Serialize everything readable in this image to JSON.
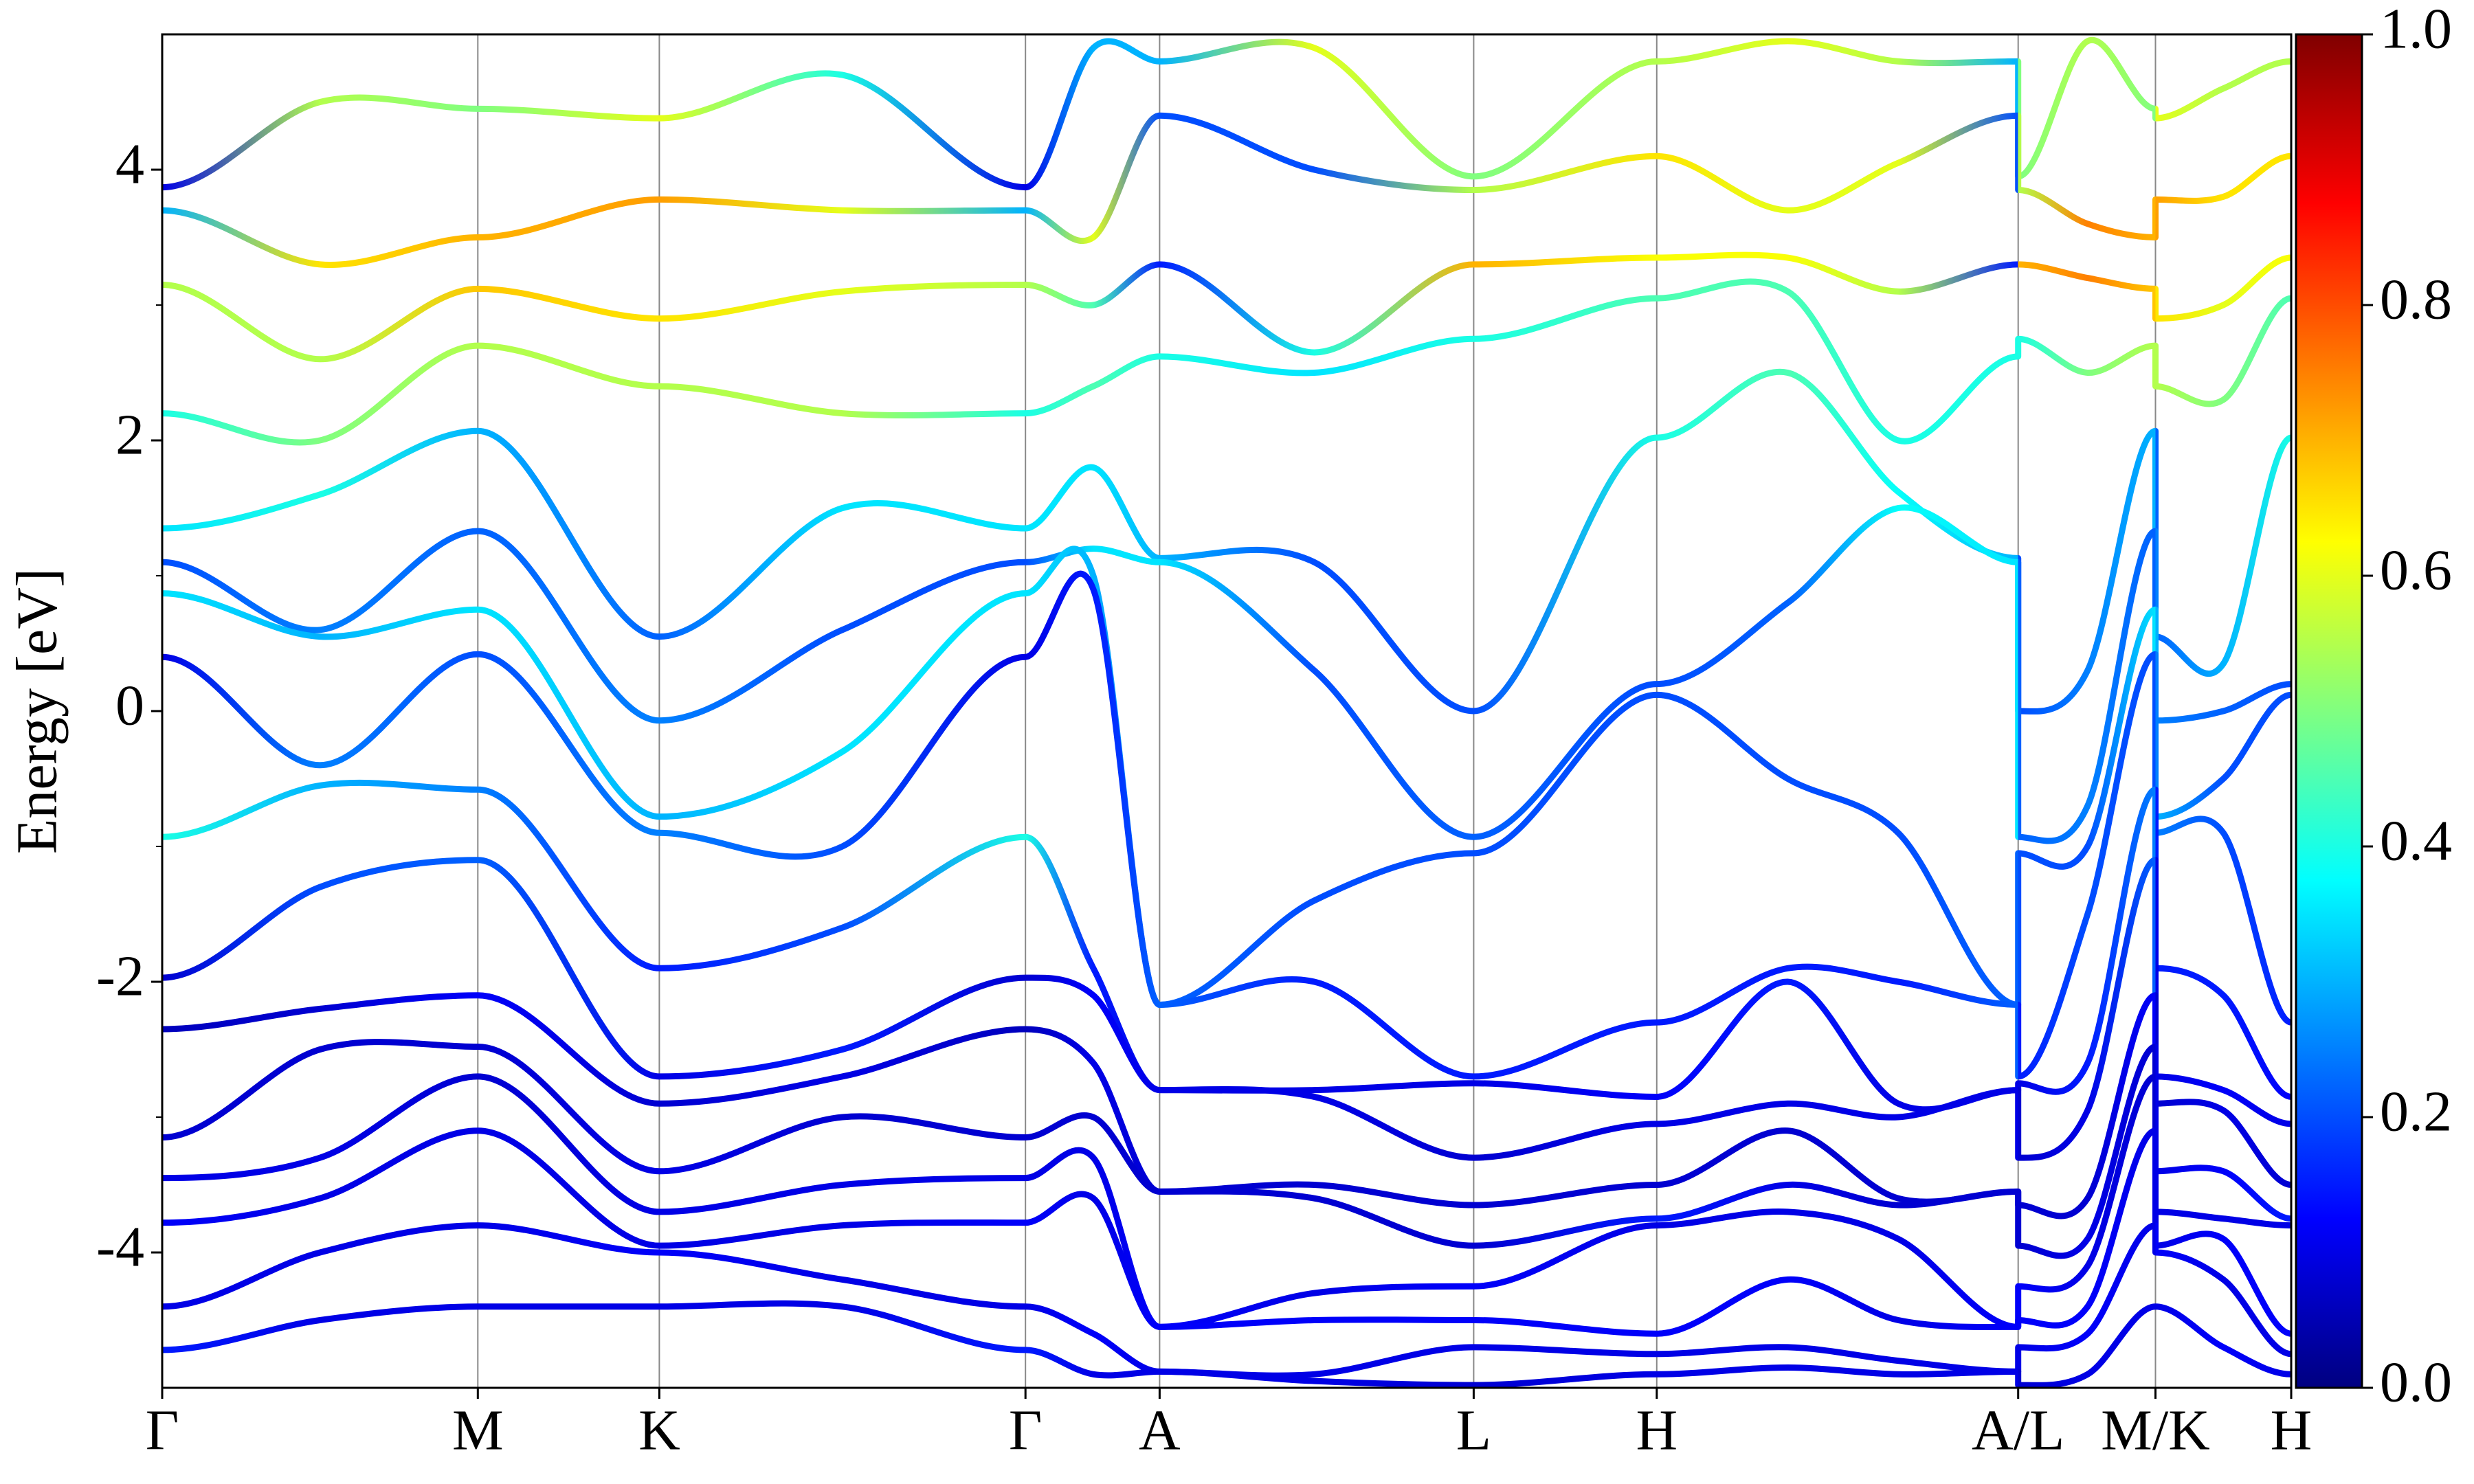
{
  "chart_data": {
    "type": "bands",
    "ylabel": "Energy [eV]",
    "colormap": "jet",
    "x": [
      0,
      1.0,
      2.0,
      3.15,
      4.31,
      5.47,
      5.9,
      6.32,
      7.3,
      8.31,
      9.47,
      10.3,
      11.0,
      11.76,
      11.76,
      12.2,
      12.63,
      12.63,
      13.06,
      13.49
    ],
    "xlim": [
      0,
      13.49
    ],
    "xticks": [
      {
        "value": 0,
        "label": "Γ"
      },
      {
        "value": 2.0,
        "label": "M"
      },
      {
        "value": 3.15,
        "label": "K"
      },
      {
        "value": 5.47,
        "label": "Γ"
      },
      {
        "value": 6.32,
        "label": "A"
      },
      {
        "value": 8.31,
        "label": "L"
      },
      {
        "value": 9.47,
        "label": "H"
      },
      {
        "value": 11.76,
        "label": "A/L"
      },
      {
        "value": 12.63,
        "label": "M/K"
      },
      {
        "value": 13.49,
        "label": "H"
      }
    ],
    "ylim": [
      -5,
      5
    ],
    "yticks": [
      -4,
      -2,
      0,
      2,
      4
    ],
    "clim": [
      0,
      1
    ],
    "cticks": [
      {
        "value": 0,
        "label": "0.0"
      },
      0.2,
      0.4,
      0.6,
      0.8,
      {
        "value": 1,
        "label": "1.0"
      }
    ],
    "series": [
      {
        "values": [
          3.87,
          4.5,
          4.45,
          4.38,
          4.7,
          3.87,
          4.9,
          4.8,
          4.9,
          3.95,
          4.8,
          4.95,
          4.8,
          4.8,
          3.95,
          4.95,
          4.45,
          4.38,
          4.6,
          4.8
        ],
        "weights": [
          0.1,
          0.55,
          0.5,
          0.6,
          0.4,
          0.1,
          0.3,
          0.3,
          0.6,
          0.5,
          0.55,
          0.6,
          0.55,
          0.3,
          0.5,
          0.55,
          0.5,
          0.6,
          0.55,
          0.55
        ]
      },
      {
        "values": [
          3.7,
          3.3,
          3.5,
          3.78,
          3.7,
          3.7,
          3.5,
          4.4,
          4.0,
          3.85,
          4.1,
          3.7,
          4.05,
          4.4,
          3.85,
          3.6,
          3.5,
          3.78,
          3.8,
          4.1
        ],
        "weights": [
          0.3,
          0.65,
          0.7,
          0.72,
          0.6,
          0.3,
          0.6,
          0.2,
          0.2,
          0.55,
          0.65,
          0.6,
          0.6,
          0.2,
          0.55,
          0.75,
          0.7,
          0.72,
          0.65,
          0.65
        ]
      },
      {
        "values": [
          3.15,
          2.6,
          3.12,
          2.9,
          3.1,
          3.15,
          3.0,
          3.3,
          2.65,
          3.3,
          3.35,
          3.35,
          3.1,
          3.3,
          3.3,
          3.2,
          3.12,
          2.9,
          3.0,
          3.35
        ],
        "weights": [
          0.55,
          0.55,
          0.68,
          0.65,
          0.6,
          0.55,
          0.45,
          0.15,
          0.4,
          0.7,
          0.62,
          0.62,
          0.55,
          0.15,
          0.7,
          0.75,
          0.68,
          0.65,
          0.6,
          0.62
        ]
      },
      {
        "values": [
          2.2,
          2.0,
          2.7,
          2.4,
          2.2,
          2.2,
          2.4,
          2.62,
          2.5,
          2.75,
          3.05,
          3.1,
          2.0,
          2.62,
          2.75,
          2.5,
          2.7,
          2.4,
          2.3,
          3.05
        ],
        "weights": [
          0.4,
          0.5,
          0.55,
          0.55,
          0.55,
          0.4,
          0.45,
          0.4,
          0.35,
          0.4,
          0.45,
          0.45,
          0.4,
          0.4,
          0.4,
          0.5,
          0.55,
          0.55,
          0.5,
          0.45
        ]
      },
      {
        "values": [
          1.35,
          1.6,
          2.07,
          0.55,
          1.5,
          1.35,
          1.8,
          1.13,
          1.1,
          0.0,
          2.02,
          2.5,
          1.62,
          1.13,
          0.0,
          0.3,
          2.07,
          0.55,
          0.35,
          2.02
        ],
        "weights": [
          0.35,
          0.4,
          0.3,
          0.22,
          0.35,
          0.35,
          0.35,
          0.3,
          0.2,
          0.2,
          0.4,
          0.45,
          0.38,
          0.3,
          0.2,
          0.25,
          0.3,
          0.22,
          0.3,
          0.4
        ]
      },
      {
        "values": [
          1.1,
          0.6,
          1.33,
          -0.07,
          0.6,
          1.1,
          1.2,
          1.1,
          0.3,
          -0.93,
          0.2,
          0.8,
          1.5,
          1.1,
          -0.93,
          -0.7,
          1.33,
          -0.07,
          0.0,
          0.2
        ],
        "weights": [
          0.2,
          0.25,
          0.22,
          0.25,
          0.2,
          0.2,
          0.35,
          0.35,
          0.2,
          0.22,
          0.2,
          0.22,
          0.38,
          0.35,
          0.22,
          0.25,
          0.22,
          0.25,
          0.22,
          0.2
        ]
      },
      {
        "values": [
          0.87,
          0.55,
          0.75,
          -0.78,
          -0.3,
          0.87,
          1.0,
          -2.17,
          -1.4,
          -1.05,
          0.12,
          -0.5,
          -0.9,
          -2.17,
          -1.05,
          -1.0,
          0.75,
          -0.78,
          -0.5,
          0.12
        ],
        "weights": [
          0.35,
          0.3,
          0.35,
          0.3,
          0.35,
          0.35,
          0.3,
          0.22,
          0.2,
          0.2,
          0.2,
          0.2,
          0.2,
          0.22,
          0.2,
          0.2,
          0.35,
          0.3,
          0.2,
          0.2
        ]
      },
      {
        "values": [
          0.4,
          -0.4,
          0.42,
          -0.9,
          -1.0,
          0.4,
          0.9,
          -2.17,
          -2.0,
          -2.7,
          -2.3,
          -1.9,
          -2.0,
          -2.17,
          -2.7,
          -1.5,
          0.42,
          -0.9,
          -0.9,
          -2.3
        ],
        "weights": [
          0.1,
          0.25,
          0.2,
          0.25,
          0.2,
          0.1,
          0.15,
          0.22,
          0.15,
          0.15,
          0.15,
          0.15,
          0.15,
          0.22,
          0.15,
          0.2,
          0.2,
          0.25,
          0.2,
          0.15
        ]
      },
      {
        "values": [
          -0.93,
          -0.55,
          -0.58,
          -1.9,
          -1.6,
          -0.93,
          -1.9,
          -2.8,
          -2.8,
          -2.75,
          -2.85,
          -2.0,
          -2.9,
          -2.8,
          -2.75,
          -2.6,
          -0.58,
          -1.9,
          -2.1,
          -2.85
        ],
        "weights": [
          0.4,
          0.3,
          0.25,
          0.15,
          0.2,
          0.4,
          0.15,
          0.1,
          0.1,
          0.1,
          0.12,
          0.15,
          0.1,
          0.1,
          0.1,
          0.15,
          0.25,
          0.15,
          0.15,
          0.12
        ]
      },
      {
        "values": [
          -1.97,
          -1.3,
          -1.1,
          -2.7,
          -2.5,
          -1.97,
          -2.1,
          -2.8,
          -2.85,
          -3.3,
          -3.05,
          -2.9,
          -3.0,
          -2.8,
          -3.3,
          -2.95,
          -1.1,
          -2.7,
          -2.8,
          -3.05
        ],
        "weights": [
          0.08,
          0.2,
          0.22,
          0.1,
          0.15,
          0.08,
          0.12,
          0.1,
          0.1,
          0.08,
          0.1,
          0.1,
          0.1,
          0.1,
          0.08,
          0.1,
          0.22,
          0.1,
          0.12,
          0.1
        ]
      },
      {
        "values": [
          -2.35,
          -2.2,
          -2.1,
          -2.9,
          -2.7,
          -2.35,
          -2.6,
          -3.55,
          -3.5,
          -3.65,
          -3.5,
          -3.1,
          -3.6,
          -3.55,
          -3.65,
          -3.6,
          -2.1,
          -2.9,
          -2.95,
          -3.5
        ],
        "weights": [
          0.06,
          0.08,
          0.12,
          0.08,
          0.1,
          0.06,
          0.1,
          0.08,
          0.08,
          0.08,
          0.08,
          0.08,
          0.08,
          0.08,
          0.08,
          0.08,
          0.12,
          0.08,
          0.1,
          0.08
        ]
      },
      {
        "values": [
          -3.15,
          -2.5,
          -2.48,
          -3.4,
          -3.0,
          -3.15,
          -3.0,
          -3.55,
          -3.6,
          -3.95,
          -3.75,
          -3.5,
          -3.65,
          -3.55,
          -3.95,
          -3.9,
          -2.48,
          -3.4,
          -3.4,
          -3.75
        ],
        "weights": [
          0.08,
          0.08,
          0.08,
          0.1,
          0.08,
          0.08,
          0.08,
          0.08,
          0.08,
          0.08,
          0.15,
          0.1,
          0.08,
          0.08,
          0.08,
          0.1,
          0.08,
          0.1,
          0.12,
          0.15
        ]
      },
      {
        "values": [
          -3.45,
          -3.3,
          -2.7,
          -3.7,
          -3.5,
          -3.45,
          -3.3,
          -4.55,
          -4.3,
          -4.25,
          -3.8,
          -3.7,
          -3.9,
          -4.55,
          -4.25,
          -4.1,
          -2.7,
          -3.7,
          -3.75,
          -3.8
        ],
        "weights": [
          0.1,
          0.1,
          0.08,
          0.1,
          0.1,
          0.1,
          0.1,
          0.12,
          0.1,
          0.12,
          0.1,
          0.1,
          0.1,
          0.12,
          0.12,
          0.1,
          0.08,
          0.1,
          0.1,
          0.1
        ]
      },
      {
        "values": [
          -3.78,
          -3.6,
          -3.1,
          -3.95,
          -3.8,
          -3.78,
          -3.6,
          -4.55,
          -4.5,
          -4.5,
          -4.6,
          -4.2,
          -4.5,
          -4.55,
          -4.5,
          -4.4,
          -3.1,
          -3.95,
          -3.9,
          -4.6
        ],
        "weights": [
          0.12,
          0.1,
          0.1,
          0.1,
          0.1,
          0.12,
          0.1,
          0.12,
          0.12,
          0.12,
          0.12,
          0.12,
          0.1,
          0.12,
          0.12,
          0.12,
          0.1,
          0.1,
          0.12,
          0.12
        ]
      },
      {
        "values": [
          -4.4,
          -4.0,
          -3.8,
          -4.0,
          -4.2,
          -4.4,
          -4.6,
          -4.88,
          -4.9,
          -4.7,
          -4.75,
          -4.7,
          -4.8,
          -4.88,
          -4.7,
          -4.6,
          -3.8,
          -4.0,
          -4.2,
          -4.75
        ],
        "weights": [
          0.1,
          0.1,
          0.1,
          0.12,
          0.1,
          0.1,
          0.12,
          0.1,
          0.1,
          0.1,
          0.1,
          0.1,
          0.1,
          0.1,
          0.1,
          0.12,
          0.1,
          0.12,
          0.1,
          0.1
        ]
      },
      {
        "values": [
          -4.72,
          -4.5,
          -4.4,
          -4.4,
          -4.4,
          -4.72,
          -4.9,
          -4.88,
          -4.95,
          -4.98,
          -4.9,
          -4.85,
          -4.9,
          -4.88,
          -4.98,
          -4.9,
          -4.4,
          -4.4,
          -4.7,
          -4.9
        ],
        "weights": [
          0.15,
          0.1,
          0.1,
          0.1,
          0.1,
          0.15,
          0.1,
          0.1,
          0.1,
          0.08,
          0.1,
          0.1,
          0.1,
          0.1,
          0.08,
          0.1,
          0.1,
          0.1,
          0.12,
          0.1
        ]
      }
    ]
  }
}
